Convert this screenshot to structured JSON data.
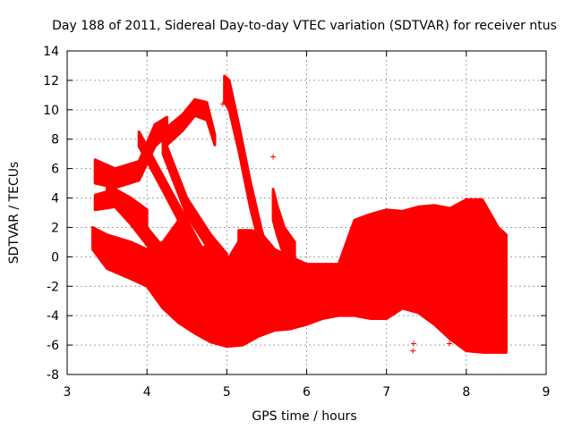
{
  "chart_data": {
    "type": "scatter",
    "title": "Day 188 of 2011, Sidereal Day-to-day VTEC variation (SDTVAR) for receiver ntus",
    "xlabel": "GPS time / hours",
    "ylabel": "SDTVAR / TECUs",
    "xlim": [
      3,
      9
    ],
    "ylim": [
      -8,
      14
    ],
    "x_ticks": [
      "3",
      "4",
      "5",
      "6",
      "7",
      "8",
      "9"
    ],
    "y_ticks": [
      "-8",
      "-6",
      "-4",
      "-2",
      "0",
      "2",
      "4",
      "6",
      "8",
      "10",
      "12",
      "14"
    ],
    "grid": true,
    "marker": "+",
    "color": "#ff0000",
    "series": [
      {
        "kind": "band",
        "x": [
          3.32,
          3.5,
          3.8,
          4.0,
          4.2,
          4.4,
          4.6,
          4.8,
          5.0,
          5.2,
          5.4,
          5.6,
          5.8,
          6.0,
          6.2,
          6.4,
          6.6,
          6.8,
          7.0,
          7.2,
          7.4,
          7.6,
          7.8,
          8.0,
          8.2,
          8.4,
          8.5
        ],
        "upper": [
          2.0,
          1.5,
          1.0,
          0.5,
          1.0,
          2.5,
          0.5,
          0.8,
          -0.3,
          1.5,
          1.8,
          0.5,
          0.0,
          -0.5,
          -0.5,
          -0.5,
          2.5,
          2.9,
          3.2,
          3.1,
          3.4,
          3.5,
          3.3,
          3.9,
          3.9,
          2.0,
          1.5
        ],
        "lower": [
          0.5,
          -0.8,
          -1.5,
          -2.0,
          -3.5,
          -4.5,
          -5.2,
          -5.8,
          -6.1,
          -6.0,
          -5.4,
          -5.0,
          -4.9,
          -4.6,
          -4.2,
          -4.0,
          -4.0,
          -4.2,
          -4.2,
          -3.5,
          -3.8,
          -4.6,
          -5.6,
          -6.4,
          -6.5,
          -6.5,
          -6.5
        ]
      },
      {
        "kind": "band",
        "x": [
          3.35,
          3.6,
          3.9,
          4.1,
          4.25
        ],
        "upper": [
          6.6,
          6.0,
          6.5,
          9.0,
          9.5
        ],
        "lower": [
          5.0,
          4.7,
          5.2,
          7.5,
          8.3
        ]
      },
      {
        "kind": "band",
        "x": [
          3.35,
          3.6,
          3.8,
          4.0
        ],
        "upper": [
          4.2,
          4.6,
          4.0,
          3.2
        ],
        "lower": [
          3.2,
          3.4,
          2.8,
          2.0
        ]
      },
      {
        "kind": "band",
        "x": [
          4.25,
          4.45,
          4.6,
          4.75,
          4.85
        ],
        "upper": [
          8.8,
          9.7,
          10.7,
          10.5,
          8.3
        ],
        "lower": [
          7.6,
          8.6,
          9.6,
          9.3,
          7.6
        ]
      },
      {
        "kind": "band",
        "x": [
          4.2,
          4.5,
          4.8,
          5.0
        ],
        "upper": [
          8.2,
          4.0,
          1.5,
          0.2
        ],
        "lower": [
          7.0,
          2.8,
          0.3,
          -1.0
        ]
      },
      {
        "kind": "band",
        "x": [
          3.9,
          4.2,
          4.5,
          4.7
        ],
        "upper": [
          8.5,
          5.5,
          2.5,
          0.5
        ],
        "lower": [
          7.5,
          4.5,
          1.4,
          -0.7
        ]
      },
      {
        "kind": "band",
        "x": [
          3.5,
          3.8,
          4.0,
          4.3
        ],
        "upper": [
          5.0,
          3.5,
          2.0,
          0.0
        ],
        "lower": [
          4.0,
          2.2,
          0.8,
          -1.2
        ]
      },
      {
        "kind": "band",
        "x": [
          4.97,
          5.03,
          5.15,
          5.3,
          5.45,
          5.52
        ],
        "upper": [
          12.3,
          12.0,
          9.0,
          5.0,
          1.5,
          0.0
        ],
        "lower": [
          10.5,
          10.0,
          7.2,
          3.2,
          0.0,
          -1.0
        ]
      },
      {
        "kind": "band",
        "x": [
          5.58,
          5.63,
          5.72,
          5.85
        ],
        "upper": [
          4.6,
          3.5,
          2.0,
          1.0
        ],
        "lower": [
          2.5,
          1.5,
          0.0,
          -0.5
        ]
      },
      {
        "kind": "band",
        "x": [
          5.15,
          5.3,
          5.45
        ],
        "upper": [
          1.8,
          1.8,
          1.6
        ],
        "lower": [
          0.6,
          0.6,
          0.4
        ]
      },
      {
        "kind": "points",
        "x": [
          5.58,
          4.95,
          7.33,
          7.34,
          7.78,
          7.8,
          7.87,
          7.79
        ],
        "y": [
          6.8,
          10.4,
          -6.4,
          -5.9,
          -4.5,
          -4.8,
          -5.6,
          -5.9
        ]
      }
    ]
  }
}
